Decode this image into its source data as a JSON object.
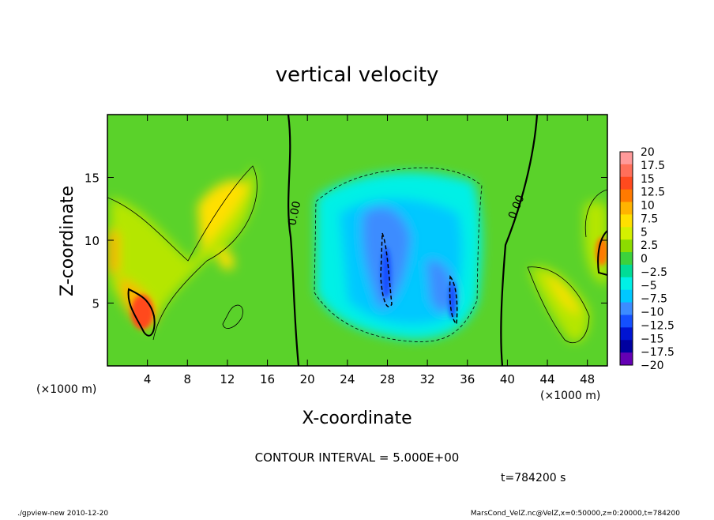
{
  "chart_data": {
    "type": "heatmap",
    "title": "vertical velocity",
    "xlabel": "X-coordinate",
    "ylabel": "Z-coordinate",
    "x_unit_label": "(×1000 m)",
    "z_unit_label": "(×1000 m)",
    "xlim": [
      0,
      50
    ],
    "zlim": [
      0,
      20
    ],
    "x_ticks": [
      4,
      8,
      12,
      16,
      20,
      24,
      28,
      32,
      36,
      40,
      44,
      48
    ],
    "z_ticks": [
      5,
      10,
      15
    ],
    "contour_label_left": "0.00",
    "contour_label_right": "0.00",
    "colorbar": {
      "levels": [
        20,
        17.5,
        15,
        12.5,
        10,
        7.5,
        5,
        2.5,
        0,
        -2.5,
        -5,
        -7.5,
        -10,
        -12.5,
        -15,
        -17.5,
        -20
      ],
      "labels": [
        "20",
        "17.5",
        "15",
        "12.5",
        "10",
        "7.5",
        "5",
        "2.5",
        "0",
        "−2.5",
        "−5",
        "−7.5",
        "−10",
        "−12.5",
        "−15",
        "−17.5",
        "−20"
      ],
      "colors": [
        "#ff9a9a",
        "#ff6f5a",
        "#ff4a1e",
        "#ff7a00",
        "#ffb300",
        "#ffe000",
        "#d4f000",
        "#8cdc00",
        "#3cd23c",
        "#00dc96",
        "#00f0e6",
        "#00c8ff",
        "#3c8cff",
        "#1450ff",
        "#0014d2",
        "#0000a0",
        "#6400b4"
      ]
    },
    "contour_interval": "CONTOUR INTERVAL = 5.000E+00",
    "time_label": "t=784200 s",
    "footer_left": "./gpview-new  2010-12-20",
    "footer_right": "MarsCond_VelZ.nc@VelZ,x=0:50000,z=0:20000,t=784200"
  }
}
